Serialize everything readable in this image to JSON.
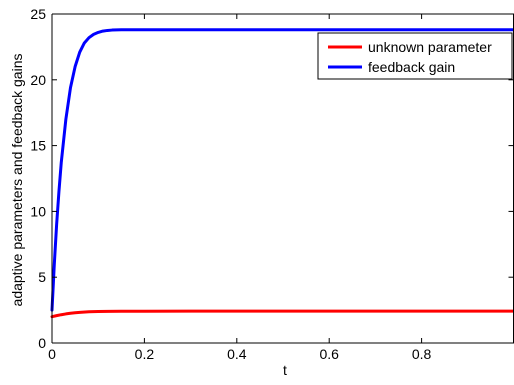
{
  "chart_data": {
    "type": "line",
    "title": "",
    "xlabel": "t",
    "ylabel": "adaptive parameters and feedback gains",
    "xlim": [
      0,
      1
    ],
    "ylim": [
      0,
      25
    ],
    "x_ticks": [
      0,
      0.2,
      0.4,
      0.6,
      0.8
    ],
    "x_tick_labels": [
      "0",
      "0.2",
      "0.4",
      "0.6",
      "0.8"
    ],
    "y_ticks": [
      0,
      5,
      10,
      15,
      20,
      25
    ],
    "y_tick_labels": [
      "0",
      "5",
      "10",
      "15",
      "20",
      "25"
    ],
    "grid": false,
    "legend_position": "top-right",
    "series": [
      {
        "name": "unknown parameter",
        "color": "#ff0000",
        "x": [
          0,
          0.01,
          0.02,
          0.03,
          0.04,
          0.05,
          0.06,
          0.08,
          0.1,
          0.12,
          0.15,
          0.2,
          0.3,
          0.4,
          0.5,
          0.6,
          0.7,
          0.8,
          0.9,
          1.0
        ],
        "y": [
          2.0,
          2.08,
          2.15,
          2.21,
          2.26,
          2.3,
          2.33,
          2.37,
          2.39,
          2.4,
          2.41,
          2.41,
          2.42,
          2.42,
          2.42,
          2.42,
          2.42,
          2.42,
          2.42,
          2.42
        ]
      },
      {
        "name": "feedback gain",
        "color": "#0000ff",
        "x": [
          0,
          0.005,
          0.01,
          0.015,
          0.02,
          0.03,
          0.04,
          0.05,
          0.06,
          0.07,
          0.08,
          0.09,
          0.1,
          0.11,
          0.12,
          0.13,
          0.15,
          0.2,
          0.3,
          0.5,
          0.7,
          1.0
        ],
        "y": [
          2.5,
          6.0,
          9.0,
          11.5,
          13.7,
          17.0,
          19.4,
          21.0,
          22.1,
          22.8,
          23.2,
          23.45,
          23.6,
          23.7,
          23.75,
          23.78,
          23.8,
          23.8,
          23.8,
          23.8,
          23.8,
          23.8
        ]
      }
    ]
  }
}
